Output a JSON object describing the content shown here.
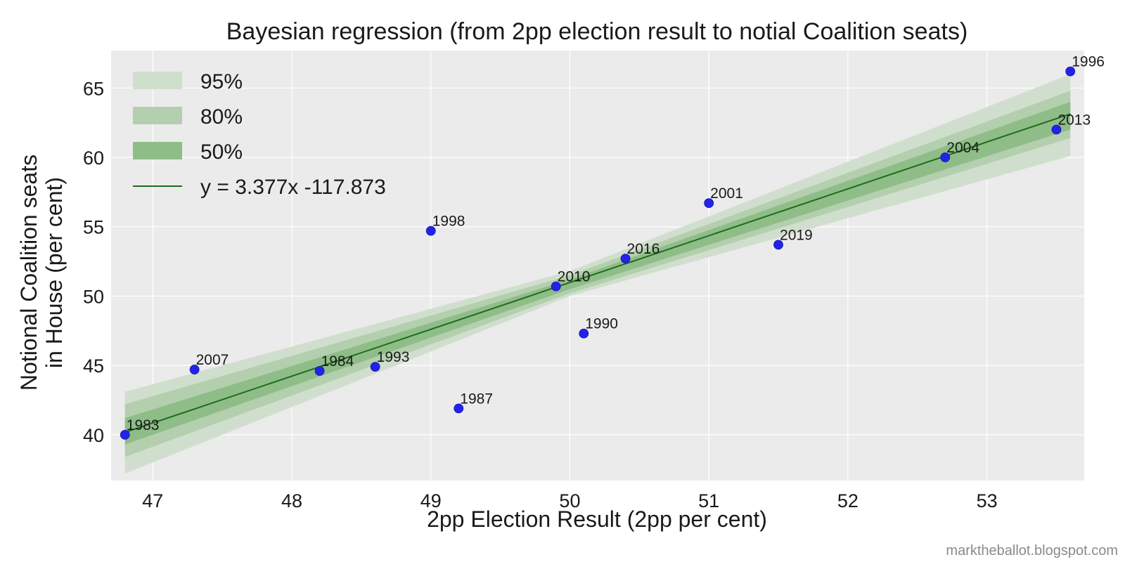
{
  "watermark": "marktheballot.blogspot.com",
  "colors": {
    "background": "#ebebeb",
    "grid": "#ffffff",
    "band_95": "#d0dfcd",
    "band_80": "#b3cfae",
    "band_50": "#8fbd88",
    "fit_line": "#1e6b1e",
    "points": "#2323e8"
  },
  "chart_data": {
    "type": "scatter",
    "title": "Bayesian regression (from 2pp election result to notial Coalition seats)",
    "xlabel": "2pp Election Result (2pp per cent)",
    "ylabel_lines": [
      "Notional Coalition seats",
      "in House (per cent)"
    ],
    "xlim": [
      46.7,
      53.7
    ],
    "ylim": [
      36.7,
      67.7
    ],
    "xticks": [
      47,
      48,
      49,
      50,
      51,
      52,
      53
    ],
    "yticks": [
      40,
      45,
      50,
      55,
      60,
      65
    ],
    "grid": true,
    "legend_position": "top-left",
    "points": [
      {
        "label": "1983",
        "x": 46.8,
        "y": 40.0
      },
      {
        "label": "2007",
        "x": 47.3,
        "y": 44.7
      },
      {
        "label": "1984",
        "x": 48.2,
        "y": 44.6
      },
      {
        "label": "1993",
        "x": 48.6,
        "y": 44.9
      },
      {
        "label": "1998",
        "x": 49.0,
        "y": 54.7
      },
      {
        "label": "1987",
        "x": 49.2,
        "y": 41.9
      },
      {
        "label": "2010",
        "x": 49.9,
        "y": 50.7
      },
      {
        "label": "1990",
        "x": 50.1,
        "y": 47.3
      },
      {
        "label": "2016",
        "x": 50.4,
        "y": 52.7
      },
      {
        "label": "2001",
        "x": 51.0,
        "y": 56.7
      },
      {
        "label": "2019",
        "x": 51.5,
        "y": 53.7
      },
      {
        "label": "2004",
        "x": 52.7,
        "y": 60.0
      },
      {
        "label": "2013",
        "x": 53.5,
        "y": 62.0
      },
      {
        "label": "1996",
        "x": 53.6,
        "y": 66.2
      }
    ],
    "fit": {
      "label": "y = 3.377x  -117.873",
      "slope": 3.377,
      "intercept": -117.873,
      "x_range": [
        46.8,
        53.6
      ]
    },
    "bands": [
      {
        "name": "95%",
        "at_x": [
          46.8,
          50.0,
          53.6
        ],
        "lower": [
          37.2,
          50.0,
          60.1
        ],
        "upper": [
          43.1,
          51.8,
          66.0
        ]
      },
      {
        "name": "80%",
        "at_x": [
          46.8,
          50.0,
          53.6
        ],
        "lower": [
          38.4,
          50.2,
          61.4
        ],
        "upper": [
          42.2,
          51.5,
          64.8
        ]
      },
      {
        "name": "50%",
        "at_x": [
          46.8,
          50.0,
          53.6
        ],
        "lower": [
          39.3,
          50.5,
          62.0
        ],
        "upper": [
          41.2,
          51.2,
          64.0
        ]
      }
    ]
  }
}
